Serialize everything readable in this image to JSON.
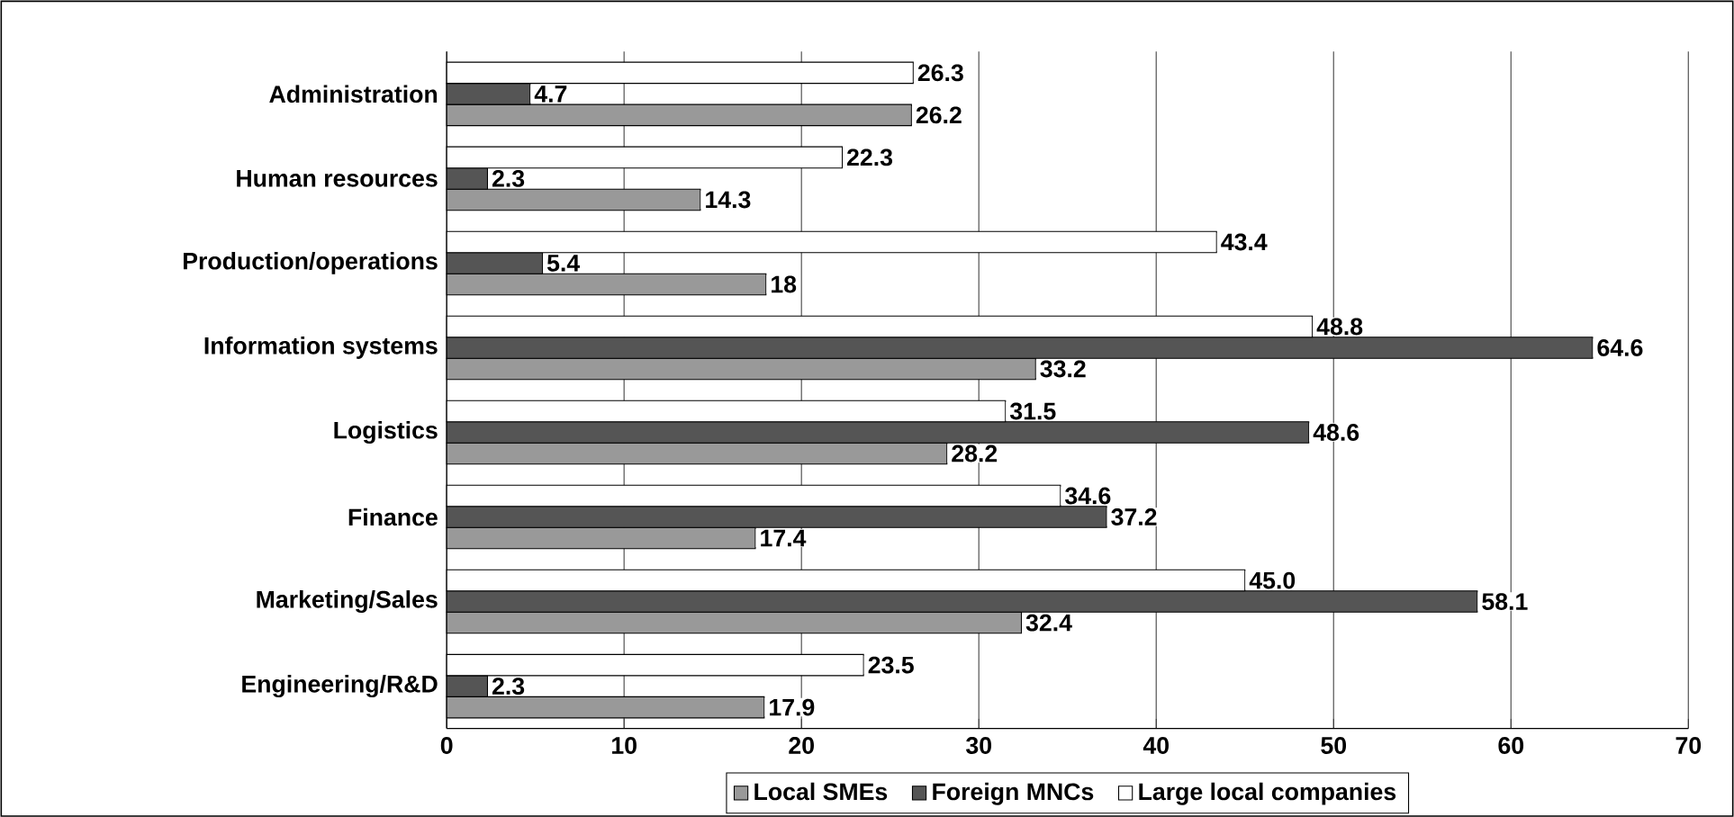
{
  "chart_data": {
    "type": "bar",
    "orientation": "horizontal",
    "categories": [
      "Administration",
      "Human resources",
      "Production/operations",
      "Information systems",
      "Logistics",
      "Finance",
      "Marketing/Sales",
      "Engineering/R&D"
    ],
    "series": [
      {
        "name": "Local SMEs",
        "color": "#999999",
        "values": [
          26.2,
          14.3,
          18,
          33.2,
          28.2,
          17.4,
          32.4,
          17.9
        ],
        "value_labels": [
          "26.2",
          "14.3",
          "18",
          "33.2",
          "28.2",
          "17.4",
          "32.4",
          "17.9"
        ]
      },
      {
        "name": "Foreign MNCs",
        "color": "#555555",
        "values": [
          4.7,
          2.3,
          5.4,
          64.6,
          48.6,
          37.2,
          58.1,
          2.3
        ],
        "value_labels": [
          "4.7",
          "2.3",
          "5.4",
          "64.6",
          "48.6",
          "37.2",
          "58.1",
          "2.3"
        ]
      },
      {
        "name": "Large local companies",
        "color": "#ffffff",
        "values": [
          26.3,
          22.3,
          43.4,
          48.8,
          31.5,
          34.6,
          45.0,
          23.5
        ],
        "value_labels": [
          "26.3",
          "22.3",
          "43.4",
          "48.8",
          "31.5",
          "34.6",
          "45.0",
          "23.5"
        ]
      }
    ],
    "xlim": [
      0,
      70
    ],
    "xticks": [
      0,
      10,
      20,
      30,
      40,
      50,
      60,
      70
    ],
    "grid": "x",
    "legend": "bottom"
  }
}
